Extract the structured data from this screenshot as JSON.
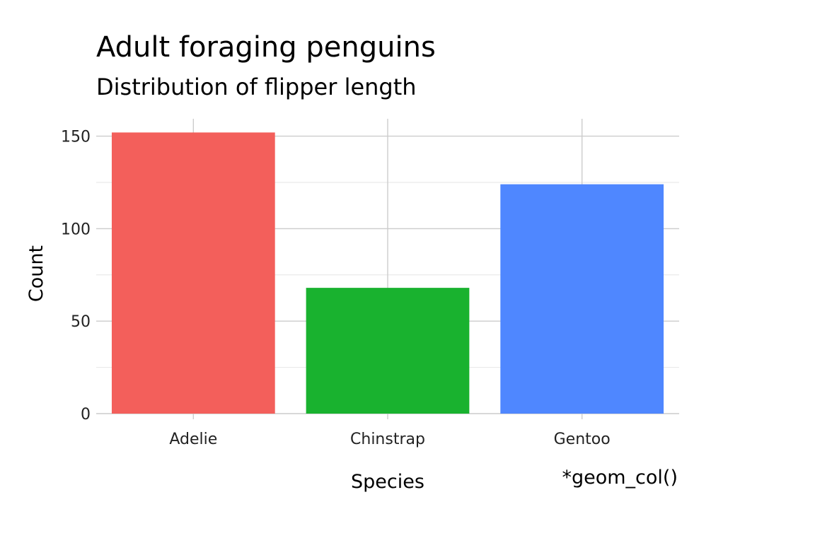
{
  "chart_data": {
    "type": "bar",
    "title": "Adult foraging penguins",
    "subtitle": "Distribution of flipper length",
    "xlabel": "Species",
    "ylabel": "Count",
    "caption": "*geom_col()",
    "categories": [
      "Adelie",
      "Chinstrap",
      "Gentoo"
    ],
    "values": [
      152,
      68,
      124
    ],
    "colors": [
      "#F8766D",
      "#00BA38",
      "#619CFF"
    ],
    "bar_colors_rendered": [
      "#F35F5B",
      "#19B22F",
      "#4F87FF"
    ],
    "ylim": [
      0,
      160
    ],
    "yticks": [
      0,
      50,
      100,
      150
    ],
    "grid": true,
    "legend": "none"
  }
}
